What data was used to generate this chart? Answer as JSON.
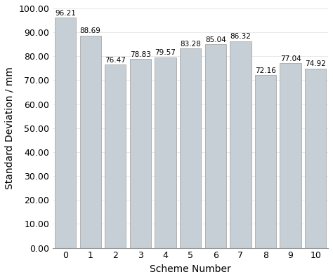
{
  "categories": [
    "0",
    "1",
    "2",
    "3",
    "4",
    "5",
    "6",
    "7",
    "8",
    "9",
    "10"
  ],
  "values": [
    96.21,
    88.69,
    76.47,
    78.83,
    79.57,
    83.28,
    85.04,
    86.32,
    72.16,
    77.04,
    74.92
  ],
  "bar_color": "#c5cfd5",
  "bar_edgecolor": "#aaaaaa",
  "xlabel": "Scheme Number",
  "ylabel": "Standard Deviation / mm",
  "ylim": [
    0,
    100
  ],
  "yticks": [
    0,
    10,
    20,
    30,
    40,
    50,
    60,
    70,
    80,
    90,
    100
  ],
  "ytick_labels": [
    "0.00",
    "10.00",
    "20.00",
    "30.00",
    "40.00",
    "50.00",
    "60.00",
    "70.00",
    "80.00",
    "90.00",
    "100.00"
  ],
  "label_fontsize": 10,
  "tick_fontsize": 9,
  "bar_label_fontsize": 7.5,
  "bar_width": 0.85,
  "background_color": "#ffffff",
  "grid_color": "#e0e0e0",
  "spine_color": "#999999"
}
